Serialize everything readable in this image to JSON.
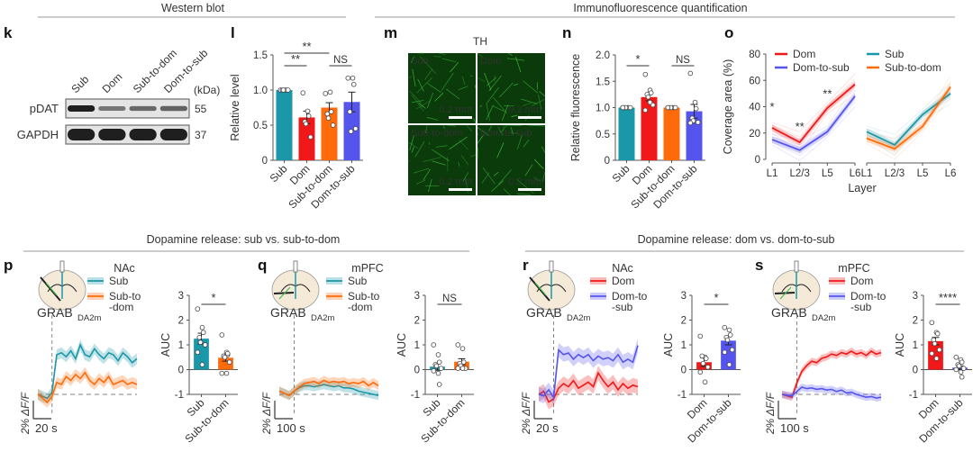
{
  "sections": {
    "western_blot": "Western blot",
    "immuno": "Immunofluorescence quantification",
    "release_sub": "Dopamine release: sub vs. sub-to-dom",
    "release_dom": "Dopamine release: dom vs. dom-to-sub"
  },
  "colors": {
    "sub": "#1a97a8",
    "dom": "#f01818",
    "sub_to_dom": "#ff6a0a",
    "dom_to_sub": "#5555ee",
    "grab": "#3fbf4f",
    "if_green": "#1c8a1c"
  },
  "panels": {
    "k": {
      "label": "k",
      "lanes": [
        "Sub",
        "Dom",
        "Sub-to-dom",
        "Dom-to-sub"
      ],
      "unit": "(kDa)",
      "rows": [
        {
          "name": "pDAT",
          "kda": "55",
          "intensity": [
            1.0,
            0.35,
            0.45,
            0.5
          ]
        },
        {
          "name": "GAPDH",
          "kda": "37",
          "intensity": [
            1.0,
            1.0,
            1.0,
            1.0
          ]
        }
      ]
    },
    "m": {
      "label": "m",
      "title": "TH",
      "tiles": [
        "Sub",
        "Dom",
        "Sub-to-dom",
        "Dom-to-sub"
      ],
      "scalebar": "0.2 mm"
    },
    "p": {
      "label": "p",
      "region": "NAc",
      "legend": [
        "Sub",
        "Sub-to\n-dom"
      ],
      "sensor": "GRAB",
      "sensor_sub": "DA2m",
      "ylabel": "2% ΔF/F",
      "xscale": "20 s"
    },
    "q": {
      "label": "q",
      "region": "mPFC",
      "legend": [
        "Sub",
        "Sub-to\n-dom"
      ],
      "sensor": "GRAB",
      "sensor_sub": "DA2m",
      "ylabel": "2% ΔF/F",
      "xscale": "100 s"
    },
    "r": {
      "label": "r",
      "region": "NAc",
      "legend": [
        "Dom",
        "Dom-to\n-sub"
      ],
      "sensor": "GRAB",
      "sensor_sub": "DA2m",
      "ylabel": "2% ΔF/F",
      "xscale": "20 s"
    },
    "s": {
      "label": "s",
      "region": "mPFC",
      "legend": [
        "Dom",
        "Dom-to\n-sub"
      ],
      "sensor": "GRAB",
      "sensor_sub": "DA2m",
      "ylabel": "2% ΔF/F",
      "xscale": "100 s"
    }
  },
  "chart_data": [
    {
      "id": "l",
      "type": "bar",
      "title": "",
      "ylabel": "Relative level",
      "ylim": [
        0,
        1.5
      ],
      "yticks": [
        "0",
        "0.5",
        "1.0",
        "1.5"
      ],
      "ytick_values": [
        0,
        0.5,
        1.0,
        1.5
      ],
      "categories": [
        "Sub",
        "Dom",
        "Sub-to-dom",
        "Dom-to-sub"
      ],
      "values": [
        1.0,
        0.61,
        0.75,
        0.83
      ],
      "errors": [
        0.0,
        0.09,
        0.07,
        0.14
      ],
      "points": [
        [
          1,
          1,
          1,
          1,
          1,
          1
        ],
        [
          0.96,
          0.7,
          0.63,
          0.55,
          0.52,
          0.33
        ],
        [
          0.95,
          0.97,
          0.69,
          0.66,
          0.6,
          0.5
        ],
        [
          1.17,
          1.17,
          1.08,
          0.69,
          0.41,
          0.45
        ]
      ],
      "significance": [
        {
          "from": 0,
          "to": 1,
          "label": "**",
          "level": 1
        },
        {
          "from": 0,
          "to": 2,
          "label": "**",
          "level": 2
        },
        {
          "from": 2,
          "to": 3,
          "label": "NS",
          "level": 1
        }
      ]
    },
    {
      "id": "n",
      "type": "bar",
      "ylabel": "Relative fluorescence",
      "ylim": [
        0,
        2.0
      ],
      "yticks": [
        "0",
        "0.5",
        "1.0",
        "1.5",
        "2.0"
      ],
      "ytick_values": [
        0,
        0.5,
        1.0,
        1.5,
        2.0
      ],
      "categories": [
        "Sub",
        "Dom",
        "Sub-to-dom",
        "Dom-to-sub"
      ],
      "values": [
        1.0,
        1.2,
        1.0,
        0.93
      ],
      "errors": [
        0.0,
        0.07,
        0.0,
        0.13
      ],
      "points": [
        [
          1,
          1,
          1,
          1,
          1,
          1,
          1
        ],
        [
          1.63,
          1.33,
          1.28,
          1.25,
          1.2,
          1.05,
          0.95,
          1.1
        ],
        [
          1,
          1,
          1,
          1,
          1,
          1,
          1
        ],
        [
          1.65,
          1.1,
          0.98,
          0.8,
          0.75,
          0.72,
          0.71
        ]
      ],
      "significance": [
        {
          "from": 0,
          "to": 1,
          "label": "*",
          "level": 1
        },
        {
          "from": 2,
          "to": 3,
          "label": "NS",
          "level": 1
        }
      ]
    },
    {
      "id": "o",
      "type": "line",
      "ylabel": "Coverage area (%)",
      "xlabel": "Layer",
      "ylim": [
        0,
        80
      ],
      "yticks": [
        "0",
        "20",
        "40",
        "60",
        "80"
      ],
      "ytick_values": [
        0,
        20,
        40,
        60,
        80
      ],
      "categories": [
        "L1",
        "L2/3",
        "L5",
        "L6"
      ],
      "groups": [
        {
          "series": [
            {
              "name": "Dom",
              "values": [
                24,
                13,
                39,
                57
              ]
            },
            {
              "name": "Dom-to-sub",
              "values": [
                15,
                7,
                21,
                48
              ]
            }
          ],
          "annotations": [
            {
              "x": 0,
              "y": 37,
              "label": "*"
            },
            {
              "x": 1,
              "y": 22,
              "label": "**"
            },
            {
              "x": 2,
              "y": 47,
              "label": "**"
            }
          ]
        },
        {
          "series": [
            {
              "name": "Sub",
              "values": [
                21,
                11,
                34,
                50
              ]
            },
            {
              "name": "Sub-to-dom",
              "values": [
                16,
                8,
                25,
                55
              ]
            }
          ],
          "annotations": []
        }
      ]
    },
    {
      "id": "p-trace",
      "type": "line",
      "ylabel": "2% ΔF/F",
      "xlabel": "20 s",
      "series": [
        {
          "name": "Sub",
          "values": [
            0,
            -0.1,
            -0.2,
            0.1,
            2.0,
            2.1,
            1.9,
            2.2,
            1.8,
            2.5,
            2.0,
            1.9,
            2.3,
            2.0,
            1.8,
            2.1,
            2.0,
            1.7,
            2.1,
            1.9,
            1.6,
            1.8
          ]
        },
        {
          "name": "Sub-to-dom",
          "values": [
            0,
            -0.2,
            -0.4,
            -0.1,
            0.6,
            0.5,
            0.9,
            0.7,
            1.0,
            0.8,
            1.1,
            0.7,
            0.5,
            0.8,
            0.6,
            0.9,
            0.5,
            0.6,
            0.7,
            0.5,
            0.6,
            0.5
          ]
        }
      ]
    },
    {
      "id": "p-auc",
      "type": "bar",
      "ylabel": "AUC",
      "ylim": [
        -1,
        3
      ],
      "yticks": [
        "-1",
        "0",
        "1",
        "2",
        "3"
      ],
      "ytick_values": [
        -1,
        0,
        1,
        2,
        3
      ],
      "categories": [
        "Sub",
        "Sub-to-dom"
      ],
      "values": [
        1.25,
        0.48
      ],
      "errors": [
        0.22,
        0.14
      ],
      "points": [
        [
          2.45,
          1.7,
          1.5,
          1.3,
          1.1,
          1.0,
          0.7,
          0.2
        ],
        [
          1.4,
          0.7,
          0.6,
          0.55,
          0.5,
          0.3,
          -0.15,
          -0.15,
          0.65
        ]
      ],
      "significance": [
        {
          "from": 0,
          "to": 1,
          "label": "*",
          "level": 1
        }
      ]
    },
    {
      "id": "q-trace",
      "type": "line",
      "ylabel": "2% ΔF/F",
      "xlabel": "100 s",
      "series": [
        {
          "name": "Sub",
          "values": [
            0.3,
            0.1,
            -0.1,
            0.3,
            0.6,
            0.8,
            0.8,
            0.7,
            0.8,
            0.9,
            0.8,
            0.7,
            0.8,
            0.6,
            0.6,
            0.5,
            0.3,
            0.2,
            0.1,
            0.0,
            -0.1
          ]
        },
        {
          "name": "Sub-to-dom",
          "values": [
            0.3,
            0.1,
            -0.1,
            0.3,
            0.7,
            1.0,
            1.1,
            1.2,
            1.0,
            1.3,
            1.1,
            1.2,
            1.1,
            1.2,
            1.0,
            1.1,
            1.0,
            1.2,
            0.8,
            1.1,
            0.8
          ]
        }
      ]
    },
    {
      "id": "q-auc",
      "type": "bar",
      "ylabel": "AUC",
      "ylim": [
        -1,
        3
      ],
      "yticks": [
        "-1",
        "0",
        "1",
        "2",
        "3"
      ],
      "ytick_values": [
        -1,
        0,
        1,
        2,
        3
      ],
      "categories": [
        "Sub",
        "Sub-to-dom"
      ],
      "values": [
        0.12,
        0.32
      ],
      "errors": [
        0.15,
        0.12
      ],
      "points": [
        [
          1.0,
          0.6,
          0.3,
          0.2,
          0.15,
          0.05,
          -0.05,
          -0.15,
          -0.6
        ],
        [
          1.0,
          0.85,
          0.3,
          0.25,
          0.15,
          0.05,
          0.05,
          0.05
        ]
      ],
      "significance": [
        {
          "from": 0,
          "to": 1,
          "label": "NS",
          "level": 1
        }
      ]
    },
    {
      "id": "r-trace",
      "type": "line",
      "ylabel": "2% ΔF/F",
      "xlabel": "20 s",
      "series": [
        {
          "name": "Dom",
          "values": [
            0,
            0.2,
            -0.5,
            -0.3,
            0.4,
            0.7,
            0.5,
            0.9,
            0.4,
            0.6,
            0.8,
            0.5,
            1.4,
            0.9,
            0.5,
            0.8,
            0.3,
            0.7,
            0.4,
            0.6,
            0.5
          ]
        },
        {
          "name": "Dom-to-sub",
          "values": [
            0,
            -0.1,
            0.3,
            -0.2,
            2.9,
            2.6,
            2.7,
            2.3,
            2.6,
            2.4,
            2.6,
            2.2,
            2.5,
            2.3,
            2.4,
            2.2,
            2.6,
            2.1,
            2.3,
            2.1,
            3.2
          ]
        }
      ]
    },
    {
      "id": "r-auc",
      "type": "bar",
      "ylabel": "AUC",
      "ylim": [
        -1,
        3
      ],
      "yticks": [
        "-1",
        "0",
        "1",
        "2",
        "3"
      ],
      "ytick_values": [
        -1,
        0,
        1,
        2,
        3
      ],
      "categories": [
        "Dom",
        "Dom-to-sub"
      ],
      "values": [
        0.3,
        1.17
      ],
      "errors": [
        0.17,
        0.17
      ],
      "points": [
        [
          1.35,
          0.5,
          0.45,
          0.55,
          0.25,
          0.1,
          -0.1,
          -0.5
        ],
        [
          1.7,
          1.6,
          1.4,
          1.3,
          1.2,
          0.8,
          0.7,
          0.2
        ]
      ],
      "significance": [
        {
          "from": 0,
          "to": 1,
          "label": "*",
          "level": 1
        }
      ]
    },
    {
      "id": "s-trace",
      "type": "line",
      "ylabel": "2% ΔF/F",
      "xlabel": "100 s",
      "series": [
        {
          "name": "Dom",
          "values": [
            0,
            -0.1,
            -0.2,
            0.8,
            1.6,
            2.0,
            2.3,
            2.2,
            2.5,
            2.6,
            2.8,
            2.7,
            2.9,
            2.8,
            3.0,
            2.8,
            2.9,
            2.7,
            3.0,
            2.8,
            2.9
          ]
        },
        {
          "name": "Dom-to-sub",
          "values": [
            0,
            -0.05,
            -0.1,
            0.2,
            0.5,
            0.4,
            0.45,
            0.35,
            0.4,
            0.3,
            0.35,
            0.2,
            0.3,
            0.1,
            0.15,
            0.0,
            -0.1,
            -0.2,
            -0.15,
            -0.25,
            -0.2
          ]
        }
      ]
    },
    {
      "id": "s-auc",
      "type": "bar",
      "ylabel": "AUC",
      "ylim": [
        -1,
        3
      ],
      "yticks": [
        "-1",
        "0",
        "1",
        "2",
        "3"
      ],
      "ytick_values": [
        -1,
        0,
        1,
        2,
        3
      ],
      "categories": [
        "Dom",
        "Dom-to-sub"
      ],
      "values": [
        1.15,
        0.08
      ],
      "errors": [
        0.15,
        0.07
      ],
      "points": [
        [
          1.9,
          1.5,
          1.45,
          1.2,
          1.05,
          0.8,
          0.65,
          0.45
        ],
        [
          0.5,
          0.4,
          0.3,
          0.2,
          0.15,
          0.05,
          0.0,
          -0.1,
          -0.3
        ]
      ],
      "significance": [
        {
          "from": 0,
          "to": 1,
          "label": "****",
          "level": 1
        }
      ]
    }
  ]
}
